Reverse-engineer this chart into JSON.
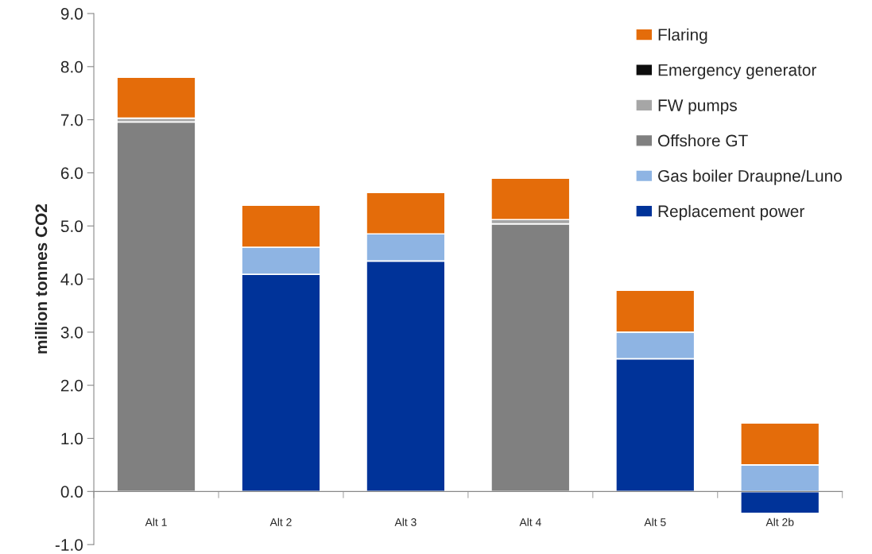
{
  "chart_data": {
    "type": "bar",
    "stacked": true,
    "ylabel": "million tonnes CO2",
    "categories": [
      "Alt 1",
      "Alt 2",
      "Alt 3",
      "Alt 4",
      "Alt 5",
      "Alt 2b"
    ],
    "series": [
      {
        "name": "Replacement power",
        "color": "#003399",
        "values": [
          null,
          4.09,
          4.34,
          null,
          2.5,
          -0.41
        ]
      },
      {
        "name": "Gas boiler Draupne/Luno",
        "color": "#8eb4e3",
        "values": [
          null,
          0.51,
          0.51,
          null,
          0.5,
          0.5
        ]
      },
      {
        "name": "Offshore GT",
        "color": "#808080",
        "values": [
          6.96,
          null,
          null,
          5.04,
          null,
          null
        ]
      },
      {
        "name": "FW pumps",
        "color": "#a6a6a6",
        "values": [
          0.07,
          null,
          null,
          0.08,
          null,
          null
        ]
      },
      {
        "name": "Emergency generator",
        "color": "#0d0d0d",
        "values": [
          null,
          null,
          null,
          null,
          null,
          null
        ]
      },
      {
        "name": "Flaring",
        "color": "#e46c0a",
        "values": [
          0.77,
          0.79,
          0.78,
          0.78,
          0.79,
          0.79
        ]
      }
    ],
    "ylim": [
      -1.0,
      9.0
    ],
    "yticks": [
      {
        "value": -1,
        "label": "-1.0"
      },
      {
        "value": 0,
        "label": "0.0"
      },
      {
        "value": 1,
        "label": "1.0"
      },
      {
        "value": 2,
        "label": "2.0"
      },
      {
        "value": 3,
        "label": "3.0"
      },
      {
        "value": 4,
        "label": "4.0"
      },
      {
        "value": 5,
        "label": "5.0"
      },
      {
        "value": 6,
        "label": "6.0"
      },
      {
        "value": 7,
        "label": "7.0"
      },
      {
        "value": 8,
        "label": "8.0"
      },
      {
        "value": 9,
        "label": "9.0"
      }
    ],
    "grid": false,
    "legend": "top right"
  }
}
